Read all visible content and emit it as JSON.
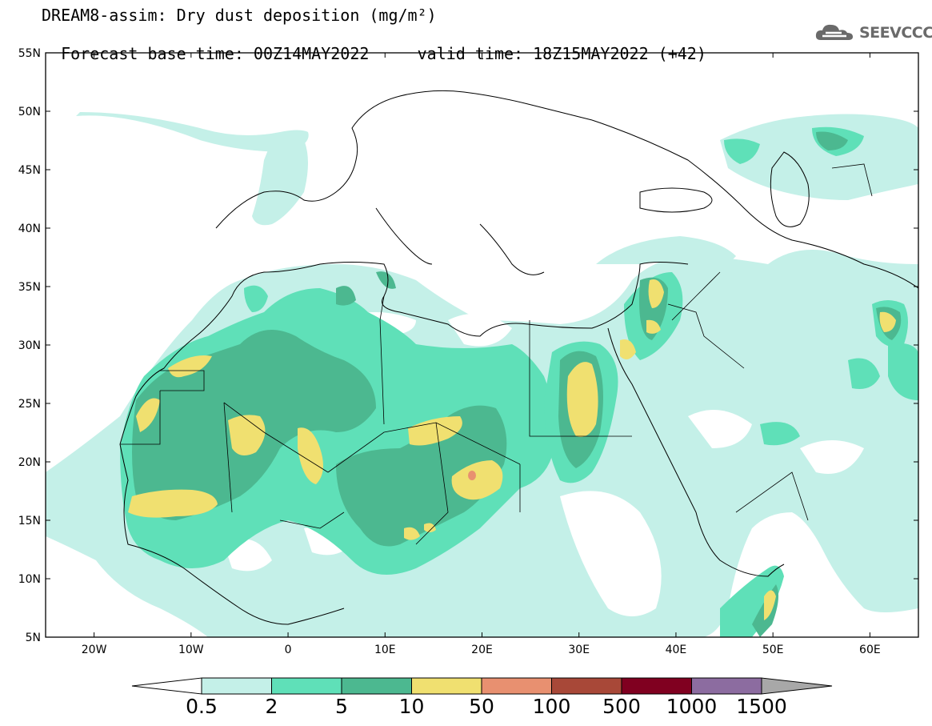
{
  "title": {
    "line1": "DREAM8-assim: Dry dust deposition (mg/m²)",
    "line2_base_label": "Forecast base time: 00Z14MAY2022",
    "line2_valid_label": "valid time: 18Z15MAY2022 (+42)"
  },
  "logo": {
    "text": "SEEVCCC",
    "icon": "cloud-logo-icon"
  },
  "map": {
    "lon_range": [
      -25,
      65
    ],
    "lat_range": [
      5,
      55
    ],
    "lat_labels": [
      "55N",
      "50N",
      "45N",
      "40N",
      "35N",
      "30N",
      "25N",
      "20N",
      "15N",
      "10N",
      "5N"
    ],
    "lat_values": [
      55,
      50,
      45,
      40,
      35,
      30,
      25,
      20,
      15,
      10,
      5
    ],
    "lon_labels": [
      "20W",
      "10W",
      "0",
      "10E",
      "20E",
      "30E",
      "40E",
      "50E",
      "60E"
    ],
    "lon_values": [
      -20,
      -10,
      0,
      10,
      20,
      30,
      40,
      50,
      60
    ]
  },
  "colorbar": {
    "labels": [
      "0.5",
      "2",
      "5",
      "10",
      "50",
      "100",
      "500",
      "1000",
      "1500"
    ],
    "colors": [
      "#c4f0e8",
      "#5fe0b8",
      "#4cb890",
      "#f0e070",
      "#e89070",
      "#a84838",
      "#800020",
      "#8c6ca0"
    ],
    "under_color": "#ffffff",
    "over_color": "#a8a8a8"
  },
  "colors": {
    "coast": "#000000",
    "level1": "#c4f0e8",
    "level2": "#5fe0b8",
    "level3": "#4cb890",
    "level4": "#f0e070",
    "level5": "#e89070"
  }
}
